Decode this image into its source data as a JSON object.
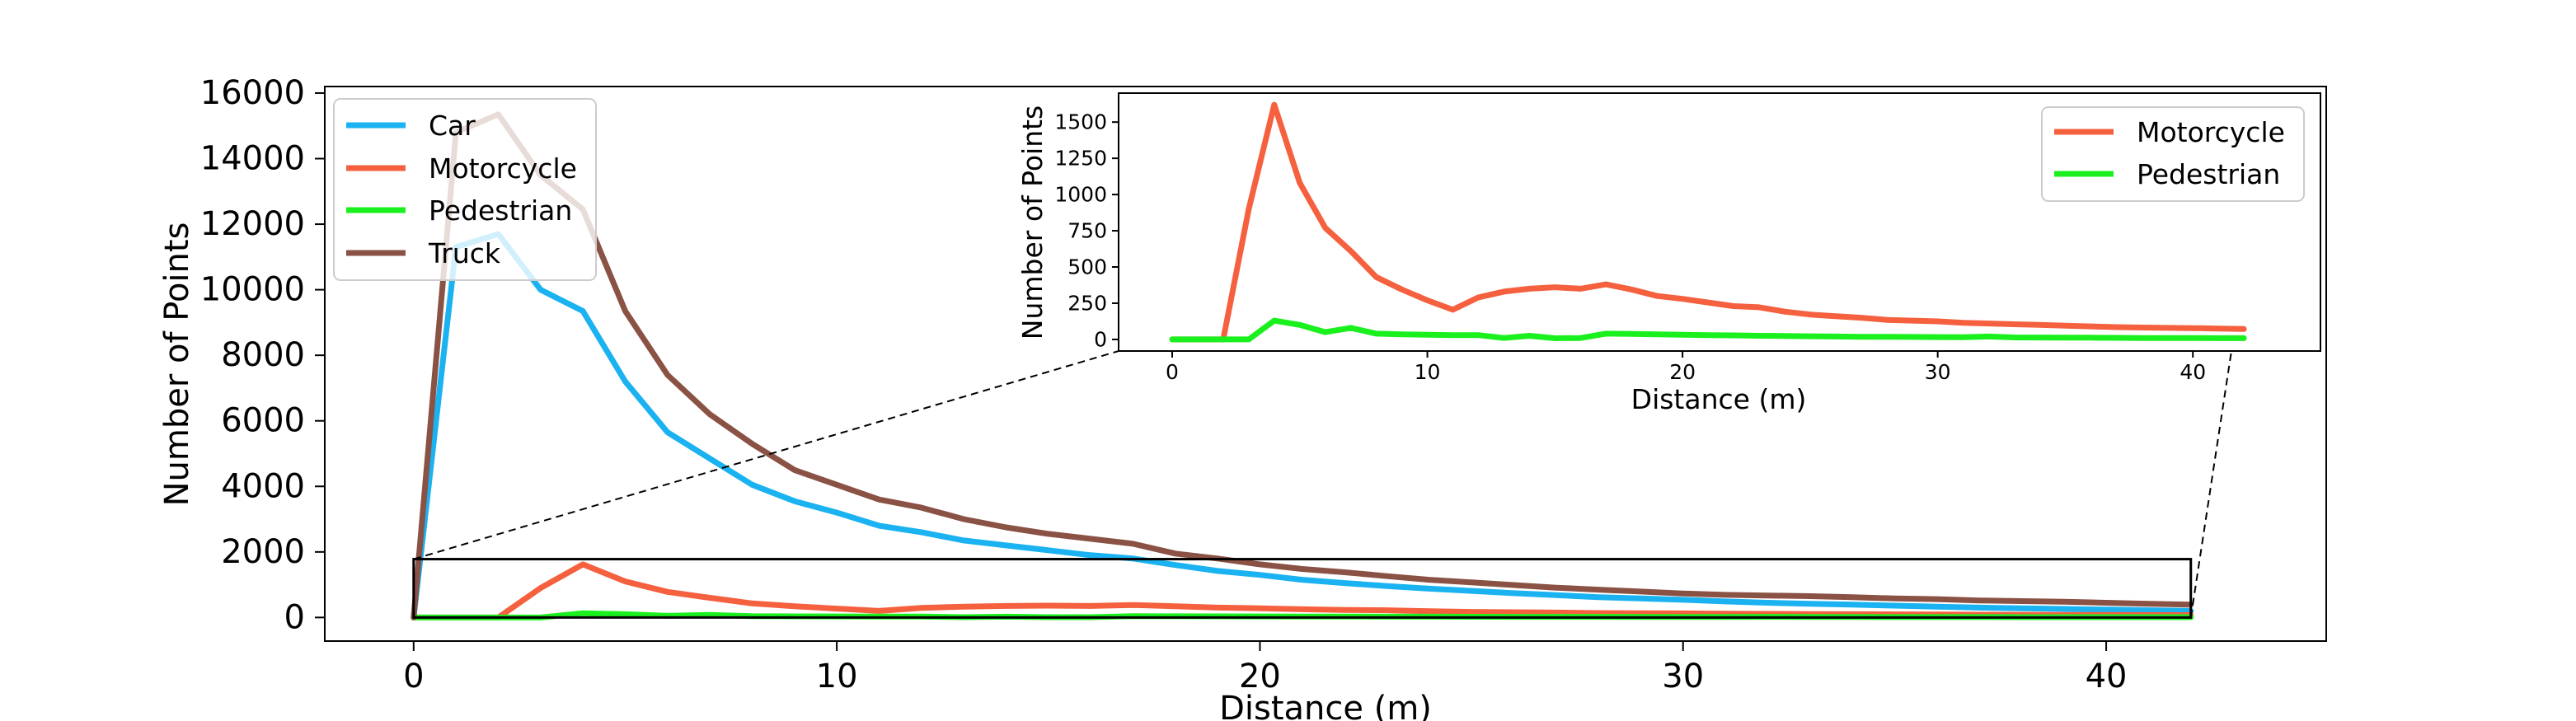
{
  "chart_data": [
    {
      "id": "main",
      "type": "line",
      "xlabel": "Distance (m)",
      "ylabel": "Number of Points",
      "xlim": [
        -2.1,
        45.2
      ],
      "ylim": [
        -720,
        16200
      ],
      "xticks": [
        0,
        10,
        20,
        30,
        40
      ],
      "yticks": [
        0,
        2000,
        4000,
        6000,
        8000,
        10000,
        12000,
        14000,
        16000
      ],
      "grid": false,
      "legend": "upper left",
      "zoom_box": {
        "x": [
          0,
          42
        ],
        "y": [
          0,
          1780
        ]
      },
      "x": [
        0,
        1,
        2,
        3,
        4,
        5,
        6,
        7,
        8,
        9,
        10,
        11,
        12,
        13,
        14,
        15,
        16,
        17,
        18,
        19,
        20,
        21,
        22,
        23,
        24,
        25,
        26,
        27,
        28,
        29,
        30,
        31,
        32,
        33,
        34,
        35,
        36,
        37,
        38,
        39,
        40,
        41,
        42
      ],
      "series": [
        {
          "name": "Car",
          "color": "#1ab2f0",
          "values": [
            0,
            11300,
            11700,
            10000,
            9350,
            7200,
            5650,
            4850,
            4050,
            3550,
            3200,
            2800,
            2600,
            2350,
            2200,
            2050,
            1900,
            1800,
            1600,
            1420,
            1300,
            1150,
            1050,
            960,
            880,
            810,
            740,
            680,
            620,
            580,
            540,
            490,
            450,
            420,
            390,
            360,
            330,
            300,
            280,
            260,
            240,
            220,
            200
          ]
        },
        {
          "name": "Motorcycle",
          "color": "#f5603f",
          "values": [
            0,
            0,
            0,
            900,
            1620,
            1100,
            780,
            600,
            430,
            340,
            270,
            200,
            290,
            330,
            350,
            360,
            350,
            380,
            340,
            300,
            280,
            250,
            230,
            220,
            190,
            170,
            160,
            150,
            135,
            130,
            125,
            115,
            110,
            105,
            100,
            95,
            90,
            85,
            82,
            80,
            78,
            75,
            72
          ]
        },
        {
          "name": "Pedestrian",
          "color": "#1bf01f",
          "values": [
            0,
            0,
            0,
            0,
            130,
            100,
            50,
            80,
            40,
            35,
            32,
            30,
            30,
            10,
            25,
            8,
            10,
            40,
            38,
            35,
            32,
            30,
            28,
            25,
            24,
            22,
            20,
            18,
            18,
            17,
            16,
            15,
            20,
            14,
            13,
            12,
            12,
            11,
            10,
            10,
            10,
            9,
            9
          ]
        },
        {
          "name": "Truck",
          "color": "#8a5244",
          "values": [
            0,
            14800,
            15350,
            13500,
            12450,
            9350,
            7400,
            6200,
            5300,
            4500,
            4050,
            3600,
            3350,
            3000,
            2750,
            2550,
            2400,
            2250,
            1950,
            1800,
            1620,
            1480,
            1380,
            1260,
            1150,
            1070,
            990,
            910,
            850,
            790,
            730,
            690,
            670,
            650,
            620,
            580,
            560,
            520,
            500,
            480,
            450,
            420,
            390
          ]
        }
      ]
    },
    {
      "id": "inset",
      "type": "line",
      "xlabel": "Distance (m)",
      "ylabel": "Number of Points",
      "xlim": [
        -2.1,
        45.0
      ],
      "ylim": [
        -80,
        1700
      ],
      "xticks": [
        0,
        10,
        20,
        30,
        40
      ],
      "yticks": [
        0,
        250,
        500,
        750,
        1000,
        1250,
        1500
      ],
      "grid": false,
      "legend": "upper right",
      "x": [
        0,
        1,
        2,
        3,
        4,
        5,
        6,
        7,
        8,
        9,
        10,
        11,
        12,
        13,
        14,
        15,
        16,
        17,
        18,
        19,
        20,
        21,
        22,
        23,
        24,
        25,
        26,
        27,
        28,
        29,
        30,
        31,
        32,
        33,
        34,
        35,
        36,
        37,
        38,
        39,
        40,
        41,
        42
      ],
      "series": [
        {
          "name": "Motorcycle",
          "color": "#f5603f",
          "values": [
            0,
            0,
            0,
            900,
            1620,
            1080,
            770,
            610,
            430,
            345,
            270,
            205,
            290,
            330,
            350,
            360,
            350,
            380,
            345,
            300,
            280,
            255,
            230,
            222,
            192,
            172,
            160,
            150,
            135,
            130,
            125,
            115,
            110,
            105,
            100,
            95,
            90,
            85,
            82,
            80,
            78,
            75,
            72
          ]
        },
        {
          "name": "Pedestrian",
          "color": "#1bf01f",
          "values": [
            0,
            0,
            0,
            0,
            130,
            100,
            50,
            80,
            40,
            35,
            32,
            30,
            30,
            10,
            25,
            8,
            10,
            40,
            38,
            35,
            32,
            30,
            28,
            25,
            24,
            22,
            20,
            18,
            18,
            17,
            16,
            15,
            20,
            14,
            13,
            12,
            12,
            11,
            10,
            10,
            10,
            9,
            9
          ]
        }
      ]
    }
  ]
}
